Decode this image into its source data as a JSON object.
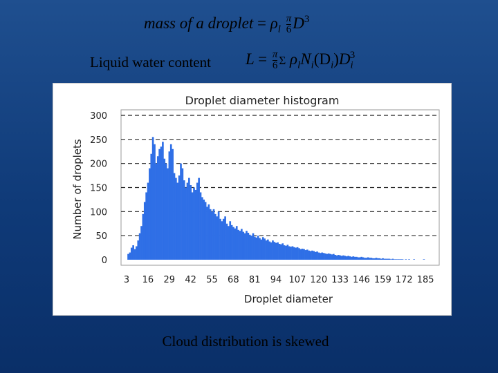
{
  "slide": {
    "formula_mass": {
      "lhs": "mass of a droplet",
      "eq": "=",
      "rho": "ρ",
      "rho_sub": "l",
      "num": "π",
      "den": "6",
      "var": "D",
      "exp": "3"
    },
    "formula_lwc": {
      "label": "Liquid water content",
      "lhs": "L",
      "eq": "=",
      "num": "π",
      "den": "6",
      "sum": "Σ",
      "rho": "ρ",
      "rho_sub": "l",
      "N": "N",
      "N_sub": "i",
      "arg": "(D",
      "arg_sub": "i",
      "arg_close": ")",
      "D": "D",
      "D_sub": "i",
      "D_exp": "3"
    },
    "caption": "Cloud distribution is skewed"
  },
  "chart_data": {
    "type": "bar",
    "title": "Droplet diameter histogram",
    "xlabel": "Droplet diameter",
    "ylabel": "Number of droplets",
    "x_ticks": [
      "3",
      "16",
      "29",
      "42",
      "55",
      "68",
      "81",
      "94",
      "107",
      "120",
      "133",
      "146",
      "159",
      "172",
      "185"
    ],
    "xlim": [
      3,
      190
    ],
    "ylim": [
      0,
      300
    ],
    "y_ticks": [
      0,
      50,
      100,
      150,
      200,
      250,
      300
    ],
    "grid": "horizontal dashed",
    "bar_color": "#2f6fe6",
    "x_start": 4,
    "values": [
      12,
      15,
      25,
      30,
      22,
      28,
      40,
      55,
      70,
      95,
      120,
      140,
      160,
      190,
      220,
      255,
      240,
      200,
      215,
      230,
      235,
      245,
      210,
      200,
      190,
      225,
      240,
      230,
      180,
      170,
      160,
      175,
      200,
      190,
      165,
      150,
      160,
      170,
      155,
      140,
      150,
      145,
      160,
      170,
      140,
      130,
      125,
      120,
      110,
      115,
      105,
      100,
      105,
      95,
      90,
      100,
      85,
      80,
      85,
      90,
      75,
      70,
      80,
      72,
      68,
      65,
      70,
      62,
      60,
      64,
      58,
      55,
      60,
      56,
      52,
      50,
      55,
      48,
      46,
      50,
      45,
      42,
      47,
      44,
      40,
      42,
      38,
      36,
      40,
      37,
      35,
      36,
      33,
      32,
      34,
      30,
      29,
      31,
      28,
      27,
      28,
      26,
      25,
      26,
      24,
      22,
      23,
      22,
      20,
      21,
      19,
      18,
      19,
      18,
      16,
      17,
      15,
      14,
      15,
      14,
      13,
      12,
      13,
      12,
      11,
      12,
      10,
      9,
      10,
      9,
      8,
      9,
      8,
      7,
      8,
      7,
      6,
      7,
      6,
      6,
      5,
      5,
      6,
      5,
      4,
      4,
      5,
      4,
      4,
      3,
      3,
      4,
      3,
      3,
      2,
      3,
      2,
      2,
      2,
      2,
      1,
      2,
      1,
      1,
      1,
      1,
      1,
      1,
      0,
      1,
      0,
      1,
      0,
      0,
      1,
      0,
      0,
      0,
      0,
      0,
      1,
      0,
      0,
      0,
      0,
      0
    ]
  }
}
